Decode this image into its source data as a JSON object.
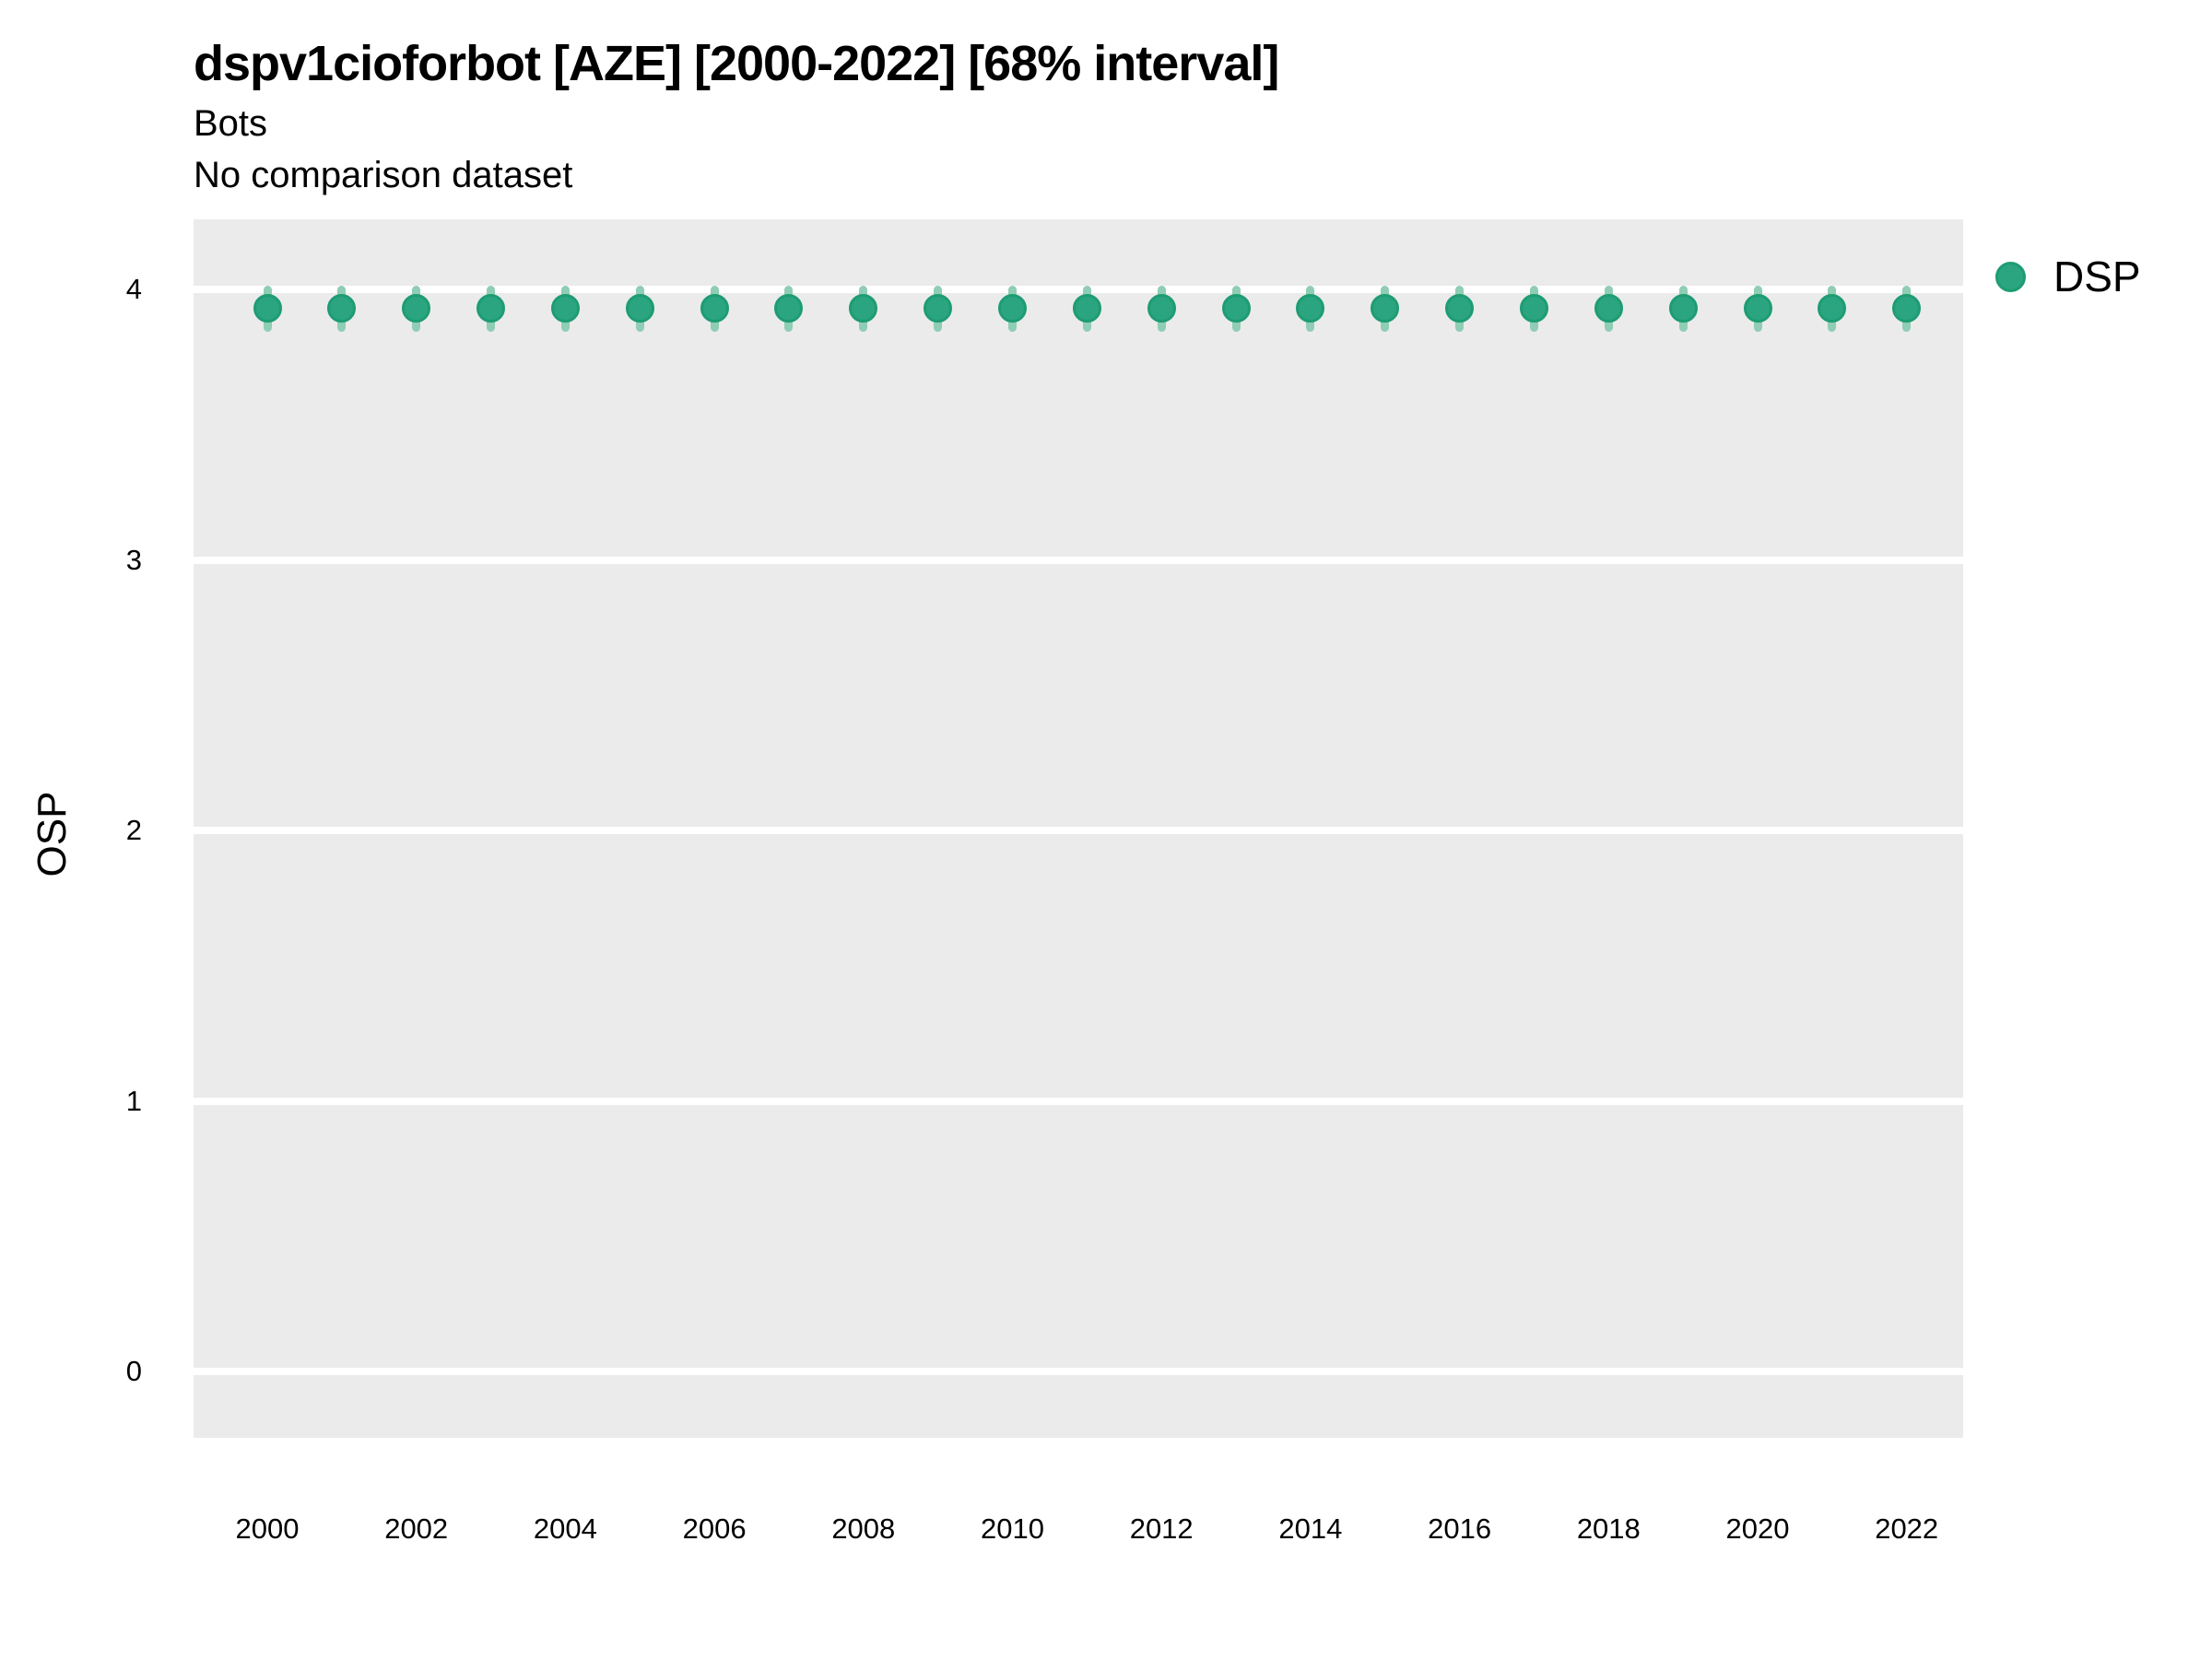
{
  "header": {
    "title": "dspv1cioforbot [AZE] [2000-2022] [68% interval]",
    "subtitle": "Bots",
    "comparison_note": "No comparison dataset"
  },
  "y_axis": {
    "title": "OSP",
    "tick_labels": [
      "0",
      "1",
      "2",
      "3",
      "4"
    ]
  },
  "x_axis": {
    "tick_labels": [
      "2000",
      "2002",
      "2004",
      "2006",
      "2008",
      "2010",
      "2012",
      "2014",
      "2016",
      "2018",
      "2020",
      "2022"
    ]
  },
  "legend": {
    "items": [
      {
        "label": "DSP",
        "color": "#2BA57F"
      }
    ]
  },
  "colors": {
    "point_fill": "#2BA57F",
    "point_stroke": "#1E9C73",
    "interval_bar": "#8FCDB4",
    "panel_bg": "#EBEBEB",
    "gridline": "#FFFFFF",
    "text": "#000000"
  },
  "chart_data": {
    "type": "scatter",
    "subtype": "pointrange",
    "title": "dspv1cioforbot [AZE] [2000-2022] [68% interval]",
    "subtitle": "Bots",
    "note": "No comparison dataset",
    "xlabel": "",
    "ylabel": "OSP",
    "interval_level": "68%",
    "grid": "major-horizontal-only",
    "legend_position": "right-top",
    "ylim": [
      -0.26,
      4.26
    ],
    "yticks": [
      0,
      1,
      2,
      3,
      4
    ],
    "x": [
      2000,
      2001,
      2002,
      2003,
      2004,
      2005,
      2006,
      2007,
      2008,
      2009,
      2010,
      2011,
      2012,
      2013,
      2014,
      2015,
      2016,
      2017,
      2018,
      2019,
      2020,
      2021,
      2022
    ],
    "series": [
      {
        "name": "DSP",
        "values": [
          3.93,
          3.93,
          3.93,
          3.93,
          3.93,
          3.93,
          3.93,
          3.93,
          3.93,
          3.93,
          3.93,
          3.93,
          3.93,
          3.93,
          3.93,
          3.93,
          3.93,
          3.93,
          3.93,
          3.93,
          3.93,
          3.93,
          3.93
        ],
        "interval_low": [
          3.86,
          3.86,
          3.86,
          3.86,
          3.86,
          3.86,
          3.86,
          3.86,
          3.86,
          3.86,
          3.86,
          3.86,
          3.86,
          3.86,
          3.86,
          3.86,
          3.86,
          3.86,
          3.86,
          3.86,
          3.86,
          3.86,
          3.86
        ],
        "interval_high": [
          4.0,
          4.0,
          4.0,
          4.0,
          4.0,
          4.0,
          4.0,
          4.0,
          4.0,
          4.0,
          4.0,
          4.0,
          4.0,
          4.0,
          4.0,
          4.0,
          4.0,
          4.0,
          4.0,
          4.0,
          4.0,
          4.0,
          4.0
        ]
      }
    ]
  }
}
